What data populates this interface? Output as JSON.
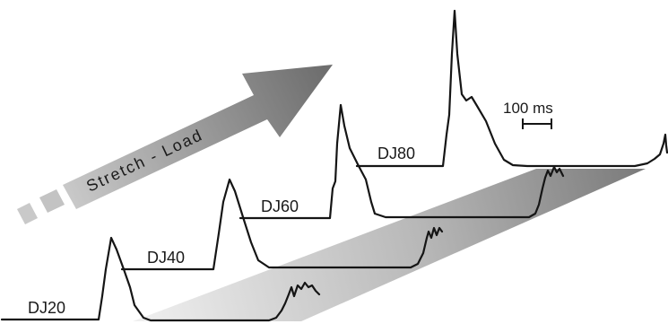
{
  "arrow": {
    "text": "Stretch - Load",
    "colors": [
      "#c8c8c8",
      "#6e6e6e"
    ]
  },
  "traces": [
    {
      "label": "DJ20"
    },
    {
      "label": "DJ40"
    },
    {
      "label": "DJ60"
    },
    {
      "label": "DJ80"
    }
  ],
  "scale_bar": {
    "label": "100 ms"
  },
  "band": {
    "colors": [
      "#efefef",
      "#7a7a7a"
    ]
  }
}
